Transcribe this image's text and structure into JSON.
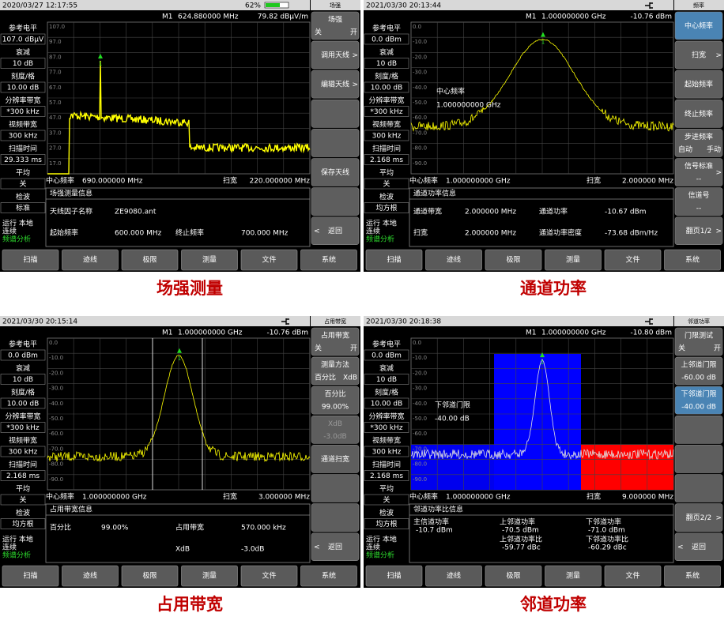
{
  "panels": [
    {
      "datetime": "2020/03/27  12:17:55",
      "battery": "62%",
      "header": "场强",
      "marker": {
        "name": "M1",
        "freq": "624.880000 MHz",
        "level": "79.82 dBμV/m",
        "tag": "1"
      },
      "side": [
        {
          "label": "参考电平",
          "value": "107.0 dBμV"
        },
        {
          "label": "衰减",
          "value": "10 dB"
        },
        {
          "label": "刻度/格",
          "value": "10.00 dB"
        },
        {
          "label": "分辨率带宽",
          "value": "*300 kHz"
        },
        {
          "label": "视频带宽",
          "value": "300 kHz"
        },
        {
          "label": "扫描时间",
          "value": "29.333 ms"
        },
        {
          "label": "平均",
          "value": "关"
        },
        {
          "label": "检波",
          "value": "标准"
        }
      ],
      "status": [
        "运行 本地",
        "连续",
        "频谱分析"
      ],
      "y_labels": [
        "107.0",
        "97.0",
        "87.0",
        "77.0",
        "67.0",
        "57.0",
        "47.0",
        "37.0",
        "27.0",
        "17.0"
      ],
      "center": {
        "label": "中心频率",
        "value": "690.000000 MHz"
      },
      "span": {
        "label": "扫宽",
        "value": "220.000000 MHz"
      },
      "info": {
        "title": "场强测量信息",
        "rows": [
          [
            {
              "label": "天线因子名称",
              "value": "ZE9080.ant"
            }
          ],
          [
            {
              "label": "起始频率",
              "value": "600.000 MHz"
            },
            {
              "label": "终止频率",
              "value": "700.000 MHz"
            }
          ]
        ]
      },
      "softkeys": [
        {
          "label": "场强",
          "options": [
            "关",
            "开"
          ]
        },
        {
          "label": "调用天线",
          "arrow": ">"
        },
        {
          "label": "编辑天线",
          "arrow": ">"
        },
        {},
        {},
        {
          "label": "保存天线"
        },
        {},
        {
          "label": "返回",
          "back": "<"
        }
      ],
      "buttons": [
        "扫描",
        "迹线",
        "极限",
        "测量",
        "文件",
        "系统"
      ],
      "caption": "场强测量"
    },
    {
      "datetime": "2021/03/30  20:13:44",
      "header": "频率",
      "marker": {
        "name": "M1",
        "freq": "1.000000000 GHz",
        "level": "-10.76 dBm",
        "tag": "1"
      },
      "side": [
        {
          "label": "参考电平",
          "value": "0.0 dBm"
        },
        {
          "label": "衰减",
          "value": "10 dB"
        },
        {
          "label": "刻度/格",
          "value": "10.00 dB"
        },
        {
          "label": "分辨率带宽",
          "value": "*300 kHz"
        },
        {
          "label": "视频带宽",
          "value": "300 kHz"
        },
        {
          "label": "扫描时间",
          "value": "2.168 ms"
        },
        {
          "label": "平均",
          "value": "关"
        },
        {
          "label": "检波",
          "value": "均方根"
        }
      ],
      "status": [
        "运行 本地",
        "连续",
        "频谱分析"
      ],
      "y_labels": [
        "0.0",
        "-10.0",
        "-20.0",
        "-30.0",
        "-40.0",
        "-50.0",
        "-60.0",
        "-70.0",
        "-80.0",
        "-90.0"
      ],
      "annotation": [
        "中心频率",
        "1.000000000 GHz"
      ],
      "center": {
        "label": "中心频率",
        "value": "1.000000000 GHz"
      },
      "span": {
        "label": "扫宽",
        "value": "2.000000 MHz"
      },
      "info": {
        "title": "通道功率信息",
        "rows": [
          [
            {
              "label": "通道带宽",
              "value": "2.000000 MHz"
            },
            {
              "label": "通道功率",
              "value": "-10.67 dBm"
            }
          ],
          [
            {
              "label": "扫宽",
              "value": "2.000000 MHz"
            },
            {
              "label": "通道功率密度",
              "value": "-73.68 dBm/Hz"
            }
          ]
        ]
      },
      "softkeys": [
        {
          "label": "中心频率",
          "active": true
        },
        {
          "label": "扫宽",
          "arrow": ">"
        },
        {
          "label": "起始频率"
        },
        {
          "label": "终止频率"
        },
        {
          "label": "步进频率",
          "options": [
            "自动",
            "手动"
          ]
        },
        {
          "label": "信号标准",
          "arrow": ">",
          "sub": "--"
        },
        {
          "label": "信道号",
          "sub": "--"
        },
        {
          "label": "翻页1/2",
          "arrow": ">"
        }
      ],
      "buttons": [
        "扫描",
        "迹线",
        "极限",
        "测量",
        "文件",
        "系统"
      ],
      "caption": "通道功率"
    },
    {
      "datetime": "2021/03/30  20:15:14",
      "header": "占用带宽",
      "marker": {
        "name": "M1",
        "freq": "1.000000000 GHz",
        "level": "-10.76 dBm",
        "tag": "1"
      },
      "side": [
        {
          "label": "参考电平",
          "value": "0.0 dBm"
        },
        {
          "label": "衰减",
          "value": "10 dB"
        },
        {
          "label": "刻度/格",
          "value": "10.00 dB"
        },
        {
          "label": "分辨率带宽",
          "value": "*300 kHz"
        },
        {
          "label": "视频带宽",
          "value": "300 kHz"
        },
        {
          "label": "扫描时间",
          "value": "2.168 ms"
        },
        {
          "label": "平均",
          "value": "关"
        },
        {
          "label": "检波",
          "value": "均方根"
        }
      ],
      "status": [
        "运行 本地",
        "连续",
        "频谱分析"
      ],
      "y_labels": [
        "0.0",
        "-10.0",
        "-20.0",
        "-30.0",
        "-40.0",
        "-50.0",
        "-60.0",
        "-70.0",
        "-80.0",
        "-90.0"
      ],
      "center": {
        "label": "中心频率",
        "value": "1.000000000 GHz"
      },
      "span": {
        "label": "扫宽",
        "value": "3.000000 MHz"
      },
      "info": {
        "title": "占用带宽信息",
        "rows": [
          [
            {
              "label": "百分比",
              "value": "99.00%"
            },
            {
              "label": "占用带宽",
              "value": "570.000 kHz"
            }
          ],
          [
            null,
            {
              "label": "XdB",
              "value": "-3.0dB"
            }
          ]
        ]
      },
      "softkeys": [
        {
          "label": "占用带宽",
          "options": [
            "关",
            "开"
          ]
        },
        {
          "label": "测量方法",
          "options": [
            "百分比",
            "XdB"
          ]
        },
        {
          "label": "百分比",
          "sub": "99.00%"
        },
        {
          "label": "XdB",
          "sub": "-3.0dB",
          "disabled": true
        },
        {
          "label": "通道扫宽"
        },
        {},
        {},
        {
          "label": "返回",
          "back": "<"
        }
      ],
      "buttons": [
        "扫描",
        "迹线",
        "极限",
        "测量",
        "文件",
        "系统"
      ],
      "caption": "占用带宽"
    },
    {
      "datetime": "2021/03/30  20:18:38",
      "header": "邻道功率",
      "marker": {
        "name": "M1",
        "freq": "1.000000000 GHz",
        "level": "-10.80 dBm",
        "tag": "1"
      },
      "side": [
        {
          "label": "参考电平",
          "value": "0.0 dBm"
        },
        {
          "label": "衰减",
          "value": "10 dB"
        },
        {
          "label": "刻度/格",
          "value": "10.00 dB"
        },
        {
          "label": "分辨率带宽",
          "value": "*300 kHz"
        },
        {
          "label": "视频带宽",
          "value": "300 kHz"
        },
        {
          "label": "扫描时间",
          "value": "2.168 ms"
        },
        {
          "label": "平均",
          "value": "关"
        },
        {
          "label": "检波",
          "value": "均方根"
        }
      ],
      "status": [
        "运行 本地",
        "连续",
        "频谱分析"
      ],
      "y_labels": [
        "0.0",
        "-10.0",
        "-20.0",
        "-30.0",
        "-40.0",
        "-50.0",
        "-60.0",
        "-70.0",
        "-80.0",
        "-90.0"
      ],
      "annotation": [
        "下邻道门限",
        "-40.00 dB"
      ],
      "center": {
        "label": "中心频率",
        "value": "1.000000000 GHz"
      },
      "span": {
        "label": "扫宽",
        "value": "9.000000 MHz"
      },
      "info": {
        "title": "邻道功率比信息",
        "stacked": true,
        "rows": [
          [
            {
              "label": "主信道功率",
              "value": "-10.7 dBm"
            },
            {
              "label": "上邻道功率",
              "value": "-70.5 dBm"
            },
            {
              "label": "下邻道功率",
              "value": "-71.0 dBm"
            }
          ],
          [
            null,
            {
              "label": "上邻道功率比",
              "value": "-59.77 dBc"
            },
            {
              "label": "下邻道功率比",
              "value": "-60.29 dBc"
            }
          ]
        ]
      },
      "softkeys": [
        {
          "label": "门限测试",
          "options": [
            "关",
            "开"
          ]
        },
        {
          "label": "上邻道门限",
          "sub": "-60.00 dB"
        },
        {
          "label": "下邻道门限",
          "sub": "-40.00 dB",
          "active": true
        },
        {},
        {},
        {},
        {
          "label": "翻页2/2",
          "arrow": ">"
        },
        {
          "label": "返回",
          "back": "<"
        }
      ],
      "buttons": [
        "扫描",
        "迹线",
        "极限",
        "测量",
        "文件",
        "系统"
      ],
      "caption": "邻道功率"
    }
  ]
}
